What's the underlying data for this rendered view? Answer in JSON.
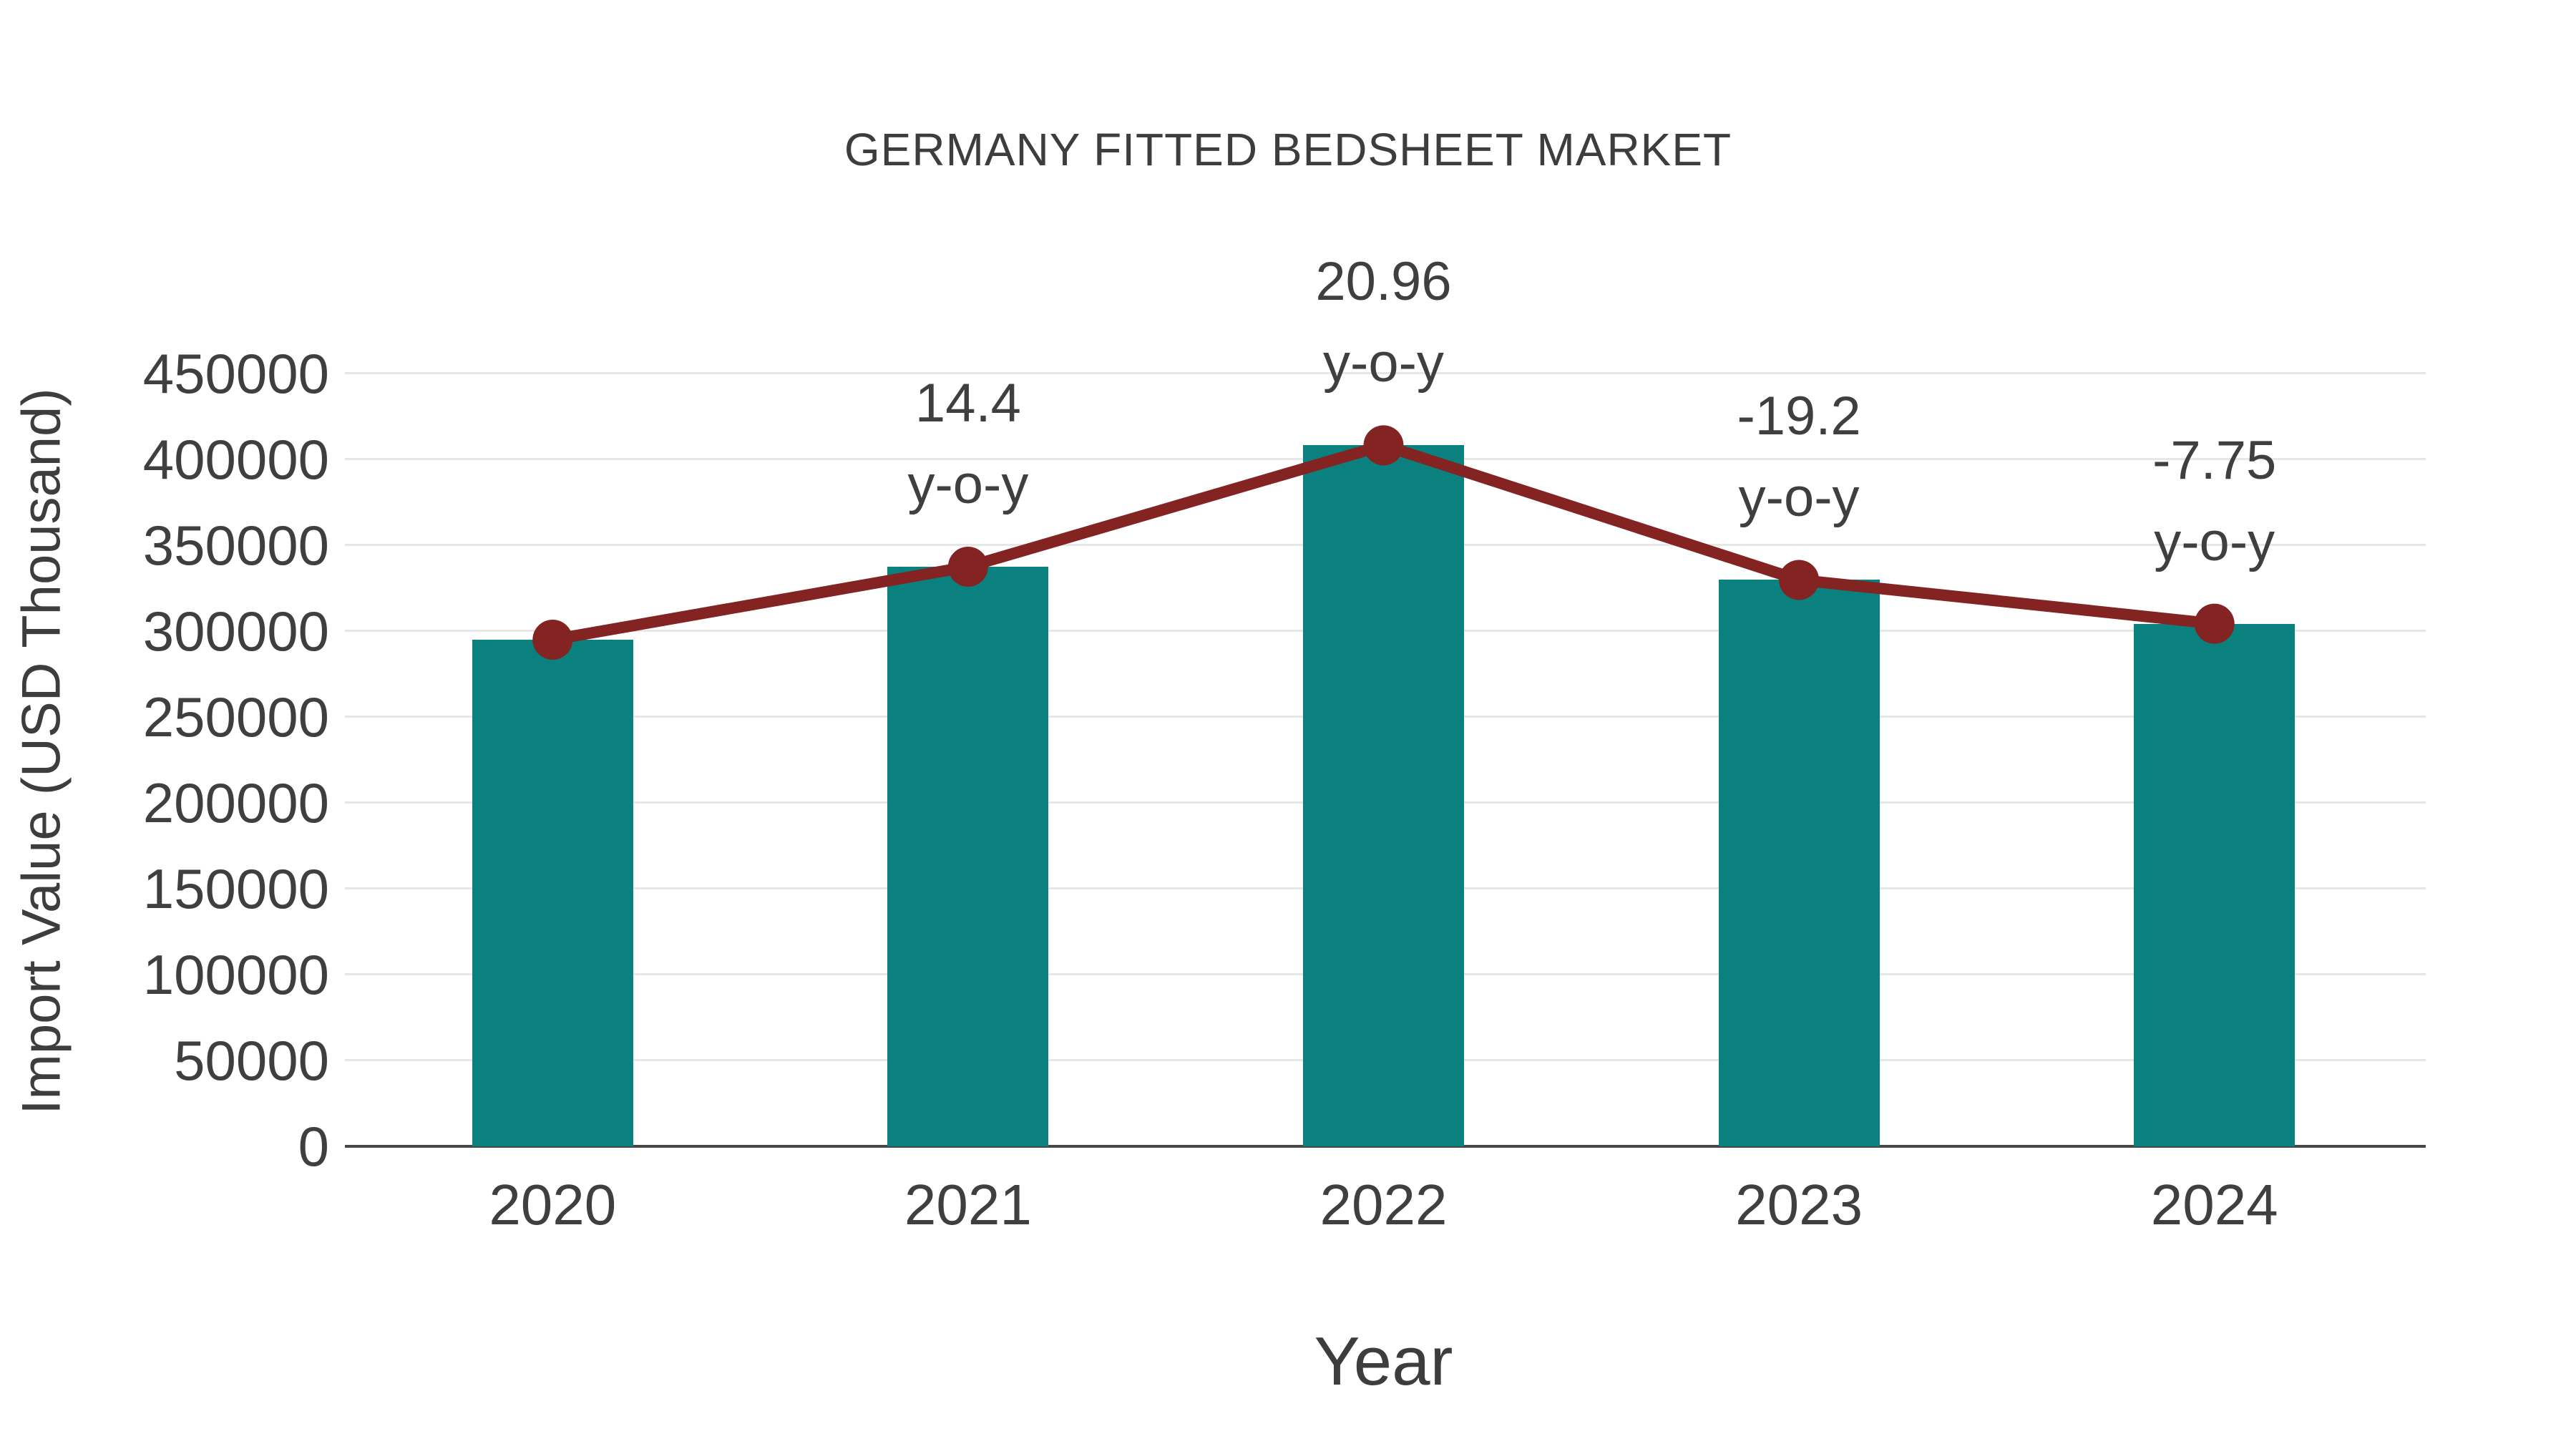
{
  "chart_data": {
    "type": "bar",
    "title": "GERMANY FITTED BEDSHEET MARKET",
    "xlabel": "Year",
    "ylabel": "Import Value (USD Thousand)",
    "categories": [
      "2020",
      "2021",
      "2022",
      "2023",
      "2024"
    ],
    "series": [
      {
        "name": "Import Value",
        "type": "bar",
        "values": [
          295000,
          337500,
          408200,
          329800,
          304300
        ]
      },
      {
        "name": "y-o-y change (%)",
        "type": "line",
        "values": [
          295000,
          337500,
          408200,
          329800,
          304300
        ],
        "point_labels": [
          null,
          "14.4",
          "20.96",
          "-19.2",
          "-7.75"
        ],
        "point_label_suffix": "y-o-y"
      }
    ],
    "ylim": [
      0,
      450000
    ],
    "y_tick_step": 50000,
    "y_tick_labels": [
      "0",
      "50000",
      "100000",
      "150000",
      "200000",
      "250000",
      "300000",
      "350000",
      "400000",
      "450000"
    ],
    "grid": true,
    "legend_position": "none",
    "colors": {
      "bar": "#0A817F",
      "line": "#832322",
      "marker": "#832322",
      "grid": "#e7e7e7",
      "axis": "#474747",
      "text": "#3f3f3f",
      "title_text": "#3d3d3d",
      "background": "#ffffff"
    }
  }
}
